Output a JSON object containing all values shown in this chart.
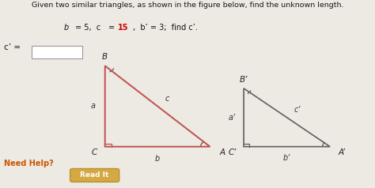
{
  "title": "Given two similar triangles, as shown in the figure below, find the unknown length.",
  "bg_color": "#ede9e3",
  "triangle1": {
    "C": [
      0.28,
      0.22
    ],
    "A": [
      0.56,
      0.22
    ],
    "B": [
      0.28,
      0.65
    ],
    "color": "#c05050"
  },
  "triangle2": {
    "C": [
      0.65,
      0.22
    ],
    "A": [
      0.88,
      0.22
    ],
    "B": [
      0.65,
      0.53
    ],
    "color": "#606060"
  },
  "need_help_color": "#cc5500",
  "read_it_bg": "#d4a843",
  "read_it_border": "#b8922e"
}
